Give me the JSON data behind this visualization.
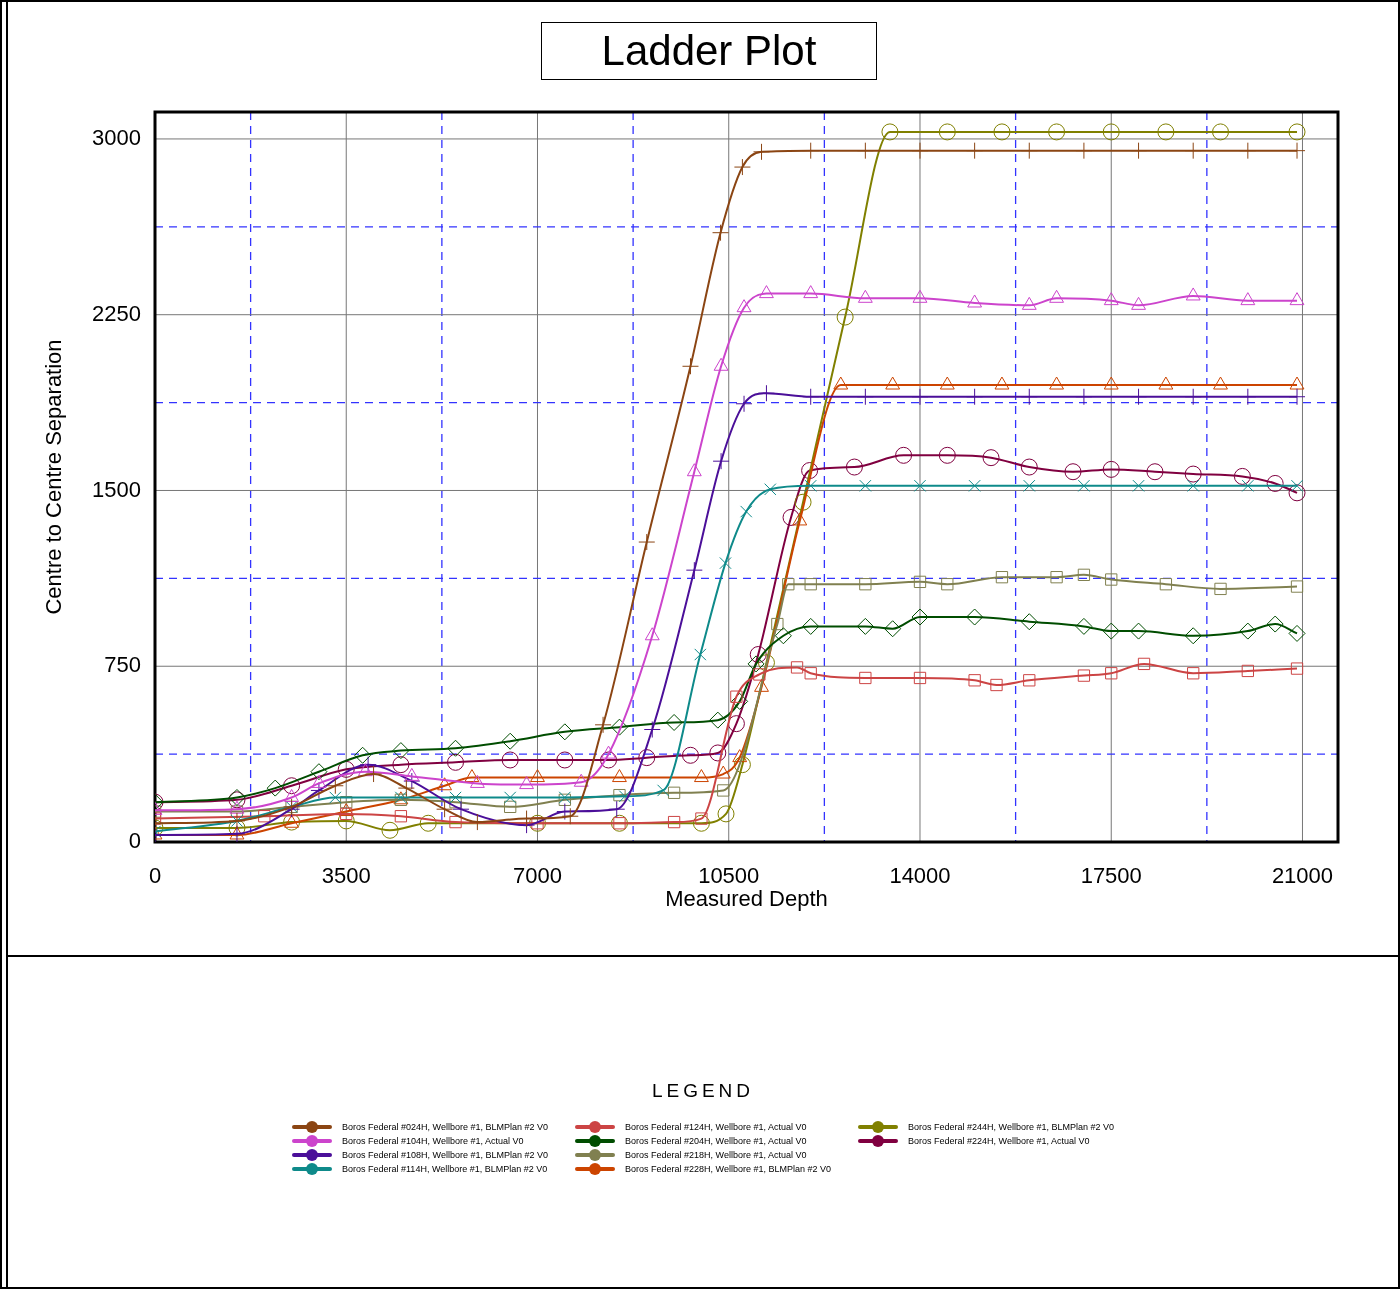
{
  "chart_data": {
    "type": "line",
    "title": "Ladder Plot",
    "xlabel": "Measured Depth",
    "ylabel": "Centre to Centre Separation",
    "legend_title": "LEGEND",
    "legend": "bottom",
    "grid": true,
    "xlim": [
      0,
      21650
    ],
    "ylim": [
      0,
      3115
    ],
    "xticks": [
      0,
      {
        "value": 1750,
        "label": null
      },
      3500,
      {
        "value": 5250,
        "label": null
      },
      7000,
      {
        "value": 8750,
        "label": null
      },
      10500,
      {
        "value": 12250,
        "label": null
      },
      14000,
      {
        "value": 15750,
        "label": null
      },
      17500,
      {
        "value": 19250,
        "label": null
      },
      21000
    ],
    "yticks": [
      0,
      {
        "value": 375,
        "label": null
      },
      750,
      {
        "value": 1125,
        "label": null
      },
      1500,
      {
        "value": 1875,
        "label": null
      },
      2250,
      {
        "value": 2625,
        "label": null
      },
      3000
    ],
    "series": [
      {
        "name": "Boros Federal #024H, Wellbore #1, BLMPlan #2 V0",
        "color": "#8b4513",
        "marker": "plus",
        "x": [
          0,
          1500,
          2500,
          3300,
          4000,
          4600,
          5300,
          5900,
          6800,
          7600,
          8200,
          9000,
          9800,
          10350,
          10750,
          11100,
          12000,
          13000,
          14000,
          15000,
          16000,
          17000,
          18000,
          19000,
          20000,
          20900
        ],
        "values": [
          80,
          90,
          150,
          240,
          290,
          230,
          140,
          85,
          100,
          110,
          500,
          1280,
          2030,
          2600,
          2880,
          2945,
          2950,
          2950,
          2950,
          2950,
          2950,
          2950,
          2950,
          2950,
          2950,
          2950
        ]
      },
      {
        "name": "Boros Federal #104H, Wellbore #1, Actual V0",
        "color": "#cc44cc",
        "marker": "triangle",
        "x": [
          0,
          1500,
          2500,
          3000,
          3850,
          4700,
          5900,
          6800,
          7800,
          8300,
          9100,
          9870,
          10360,
          10780,
          11190,
          12000,
          13000,
          14000,
          15000,
          16000,
          16500,
          17500,
          18000,
          19000,
          20000,
          20900
        ],
        "values": [
          135,
          140,
          190,
          250,
          300,
          280,
          250,
          245,
          255,
          375,
          880,
          1580,
          2030,
          2280,
          2340,
          2340,
          2320,
          2320,
          2300,
          2290,
          2320,
          2310,
          2290,
          2330,
          2310,
          2310
        ]
      },
      {
        "name": "Boros Federal #108H, Wellbore #1, BLMPlan #2 V0",
        "color": "#4b0f99",
        "marker": "plus",
        "x": [
          0,
          1500,
          2500,
          3000,
          3900,
          4700,
          5600,
          6800,
          7500,
          8450,
          9100,
          9870,
          10360,
          10780,
          11190,
          12000,
          13000,
          14000,
          15000,
          16000,
          17000,
          18000,
          19000,
          20000,
          20900
        ],
        "values": [
          30,
          35,
          140,
          220,
          330,
          260,
          140,
          72,
          130,
          140,
          480,
          1160,
          1625,
          1870,
          1915,
          1900,
          1900,
          1900,
          1900,
          1900,
          1900,
          1900,
          1900,
          1900,
          1900
        ]
      },
      {
        "name": "Boros Federal #114H, Wellbore #1, BLMPlan #2 V0",
        "color": "#0e8a8a",
        "marker": "cross",
        "x": [
          0,
          1500,
          2500,
          3300,
          4500,
          5500,
          6500,
          7500,
          8600,
          9300,
          9980,
          10440,
          10820,
          11260,
          12000,
          13000,
          14000,
          15000,
          16000,
          17000,
          18000,
          19000,
          20000,
          20900
        ],
        "values": [
          45,
          90,
          150,
          190,
          190,
          190,
          190,
          190,
          195,
          220,
          800,
          1190,
          1410,
          1505,
          1520,
          1520,
          1520,
          1520,
          1520,
          1520,
          1520,
          1520,
          1520,
          1520
        ]
      },
      {
        "name": "Boros Federal #124H, Wellbore #1, Actual V0",
        "color": "#cc4444",
        "marker": "square",
        "x": [
          0,
          2000,
          3500,
          4500,
          5500,
          7000,
          8500,
          9500,
          10000,
          10640,
          11060,
          11750,
          12000,
          13000,
          14000,
          15000,
          15400,
          16000,
          17000,
          17500,
          18100,
          19000,
          20000,
          20900
        ],
        "values": [
          100,
          110,
          120,
          110,
          85,
          80,
          80,
          85,
          100,
          620,
          715,
          745,
          720,
          700,
          700,
          690,
          670,
          690,
          710,
          720,
          760,
          720,
          730,
          740
        ]
      },
      {
        "name": "Boros Federal #204H, Wellbore #1, Actual V0",
        "color": "#004d00",
        "marker": "diamond",
        "x": [
          0,
          1500,
          2200,
          3000,
          3800,
          4500,
          5500,
          6500,
          7500,
          8500,
          9500,
          10300,
          10700,
          11000,
          11500,
          12000,
          13000,
          13500,
          14000,
          15000,
          16000,
          17000,
          17500,
          18000,
          19000,
          20000,
          20500,
          20900
        ],
        "values": [
          170,
          190,
          230,
          300,
          370,
          390,
          400,
          430,
          470,
          490,
          510,
          520,
          600,
          760,
          880,
          920,
          920,
          910,
          960,
          960,
          940,
          920,
          900,
          900,
          880,
          900,
          930,
          890
        ]
      },
      {
        "name": "Boros Federal #218H, Wellbore #1, Actual V0",
        "color": "#808050",
        "marker": "square",
        "x": [
          0,
          1500,
          2500,
          3500,
          4500,
          5500,
          6500,
          7500,
          8500,
          9500,
          10400,
          11390,
          11590,
          12000,
          13000,
          14000,
          14500,
          15500,
          16500,
          17000,
          17500,
          18500,
          19500,
          20900
        ],
        "values": [
          130,
          130,
          150,
          170,
          180,
          170,
          150,
          180,
          200,
          210,
          220,
          930,
          1100,
          1100,
          1100,
          1110,
          1100,
          1130,
          1130,
          1140,
          1120,
          1100,
          1080,
          1090
        ]
      },
      {
        "name": "Boros Federal #228H, Wellbore #1, BLMPlan #2 V0",
        "color": "#cc4400",
        "marker": "triangle",
        "x": [
          0,
          1500,
          2500,
          3500,
          4500,
          5300,
          5800,
          7000,
          8500,
          10000,
          10400,
          10700,
          11100,
          11800,
          12550,
          13500,
          14500,
          15500,
          16500,
          17500,
          18500,
          19500,
          20900
        ],
        "values": [
          30,
          30,
          80,
          130,
          180,
          240,
          275,
          275,
          275,
          275,
          290,
          360,
          660,
          1370,
          1950,
          1950,
          1950,
          1950,
          1950,
          1950,
          1950,
          1950,
          1950
        ]
      },
      {
        "name": "Boros Federal #244H, Wellbore #1, BLMPlan #2 V0",
        "color": "#808000",
        "marker": "circle",
        "x": [
          0,
          1500,
          2500,
          3500,
          4300,
          5000,
          7000,
          8500,
          10000,
          10450,
          10750,
          11190,
          11860,
          12630,
          13450,
          14500,
          15500,
          16500,
          17500,
          18500,
          19500,
          20900
        ],
        "values": [
          60,
          60,
          85,
          90,
          50,
          80,
          80,
          80,
          80,
          120,
          330,
          765,
          1450,
          2240,
          3030,
          3030,
          3030,
          3030,
          3030,
          3030,
          3030,
          3030
        ]
      },
      {
        "name": "Boros Federal #224H, Wellbore #1, Actual V0",
        "color": "#800040",
        "marker": "circle",
        "x": [
          0,
          1500,
          2500,
          3500,
          4500,
          5500,
          6500,
          7500,
          8300,
          9000,
          9800,
          10300,
          10640,
          11040,
          11640,
          11980,
          12800,
          13700,
          14500,
          15300,
          16000,
          16800,
          17500,
          18300,
          19000,
          19900,
          20500,
          20900
        ],
        "values": [
          170,
          180,
          240,
          310,
          330,
          340,
          350,
          350,
          350,
          360,
          370,
          380,
          505,
          800,
          1385,
          1585,
          1600,
          1650,
          1650,
          1640,
          1600,
          1580,
          1590,
          1580,
          1570,
          1560,
          1530,
          1490
        ]
      }
    ]
  }
}
